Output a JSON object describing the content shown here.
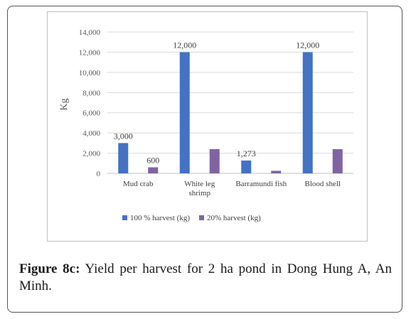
{
  "chart_data": {
    "type": "bar",
    "title": "",
    "xlabel": "",
    "ylabel": "Kg",
    "ylim": [
      0,
      14000
    ],
    "y_ticks": [
      "0",
      "2,000",
      "4,000",
      "6,000",
      "8,000",
      "10,000",
      "12,000",
      "14,000"
    ],
    "y_tick_values": [
      0,
      2000,
      4000,
      6000,
      8000,
      10000,
      12000,
      14000
    ],
    "grid": true,
    "legend_position": "bottom",
    "categories": [
      [
        "Mud crab"
      ],
      [
        "White leg",
        "shrimp"
      ],
      [
        "Barramundi fish"
      ],
      [
        "Blood shell"
      ]
    ],
    "series": [
      {
        "name": "100 % harvest (kg)",
        "color": "#4472c4",
        "values": [
          3000,
          12000,
          1273,
          12000
        ],
        "labels": [
          "3,000",
          "12,000",
          "1,273",
          "12,000"
        ]
      },
      {
        "name": "20% harvest (kg)",
        "color": "#8064a2",
        "values": [
          600,
          2400,
          255,
          2400
        ],
        "labels": [
          "600",
          "",
          "",
          ""
        ]
      }
    ]
  },
  "caption": {
    "label": "Figure 8c:",
    "text": " Yield per harvest for 2 ha pond in Dong Hung A, An Minh."
  }
}
